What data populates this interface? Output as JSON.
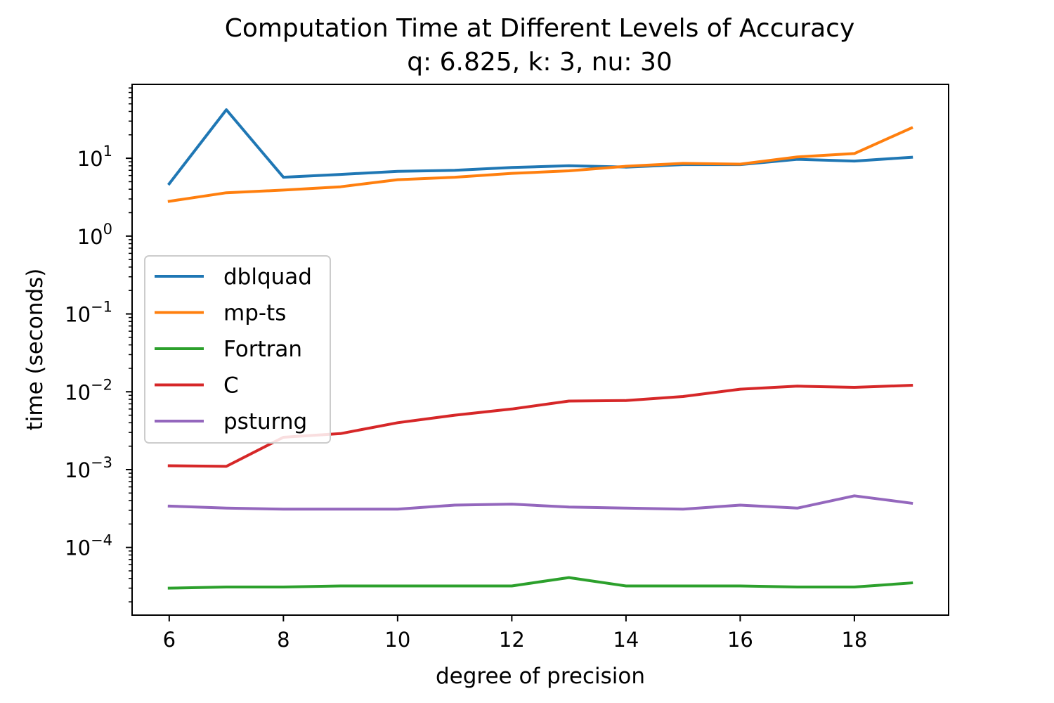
{
  "chart_data": {
    "type": "line",
    "title": "Computation Time at Different Levels of Accuracy",
    "subtitle": "q: 6.825, k: 3, nu: 30",
    "xlabel": "degree of precision",
    "ylabel": "time (seconds)",
    "yscale": "log",
    "xlim": [
      5.35,
      19.65
    ],
    "ylim": [
      1.35e-05,
      89
    ],
    "x_ticks": [
      6,
      8,
      10,
      12,
      14,
      16,
      18
    ],
    "y_ticks": [
      {
        "value": 0.0001,
        "base": "10",
        "exp": "−4"
      },
      {
        "value": 0.001,
        "base": "10",
        "exp": "−3"
      },
      {
        "value": 0.01,
        "base": "10",
        "exp": "−2"
      },
      {
        "value": 0.1,
        "base": "10",
        "exp": "−1"
      },
      {
        "value": 1,
        "base": "10",
        "exp": "0"
      },
      {
        "value": 10,
        "base": "10",
        "exp": "1"
      }
    ],
    "grid": false,
    "legend_position": "center-left",
    "x": [
      6,
      7,
      8,
      9,
      10,
      11,
      12,
      13,
      14,
      15,
      16,
      17,
      18,
      19
    ],
    "series": [
      {
        "name": "dblquad",
        "color": "#1f77b4",
        "values": [
          4.7,
          42,
          5.7,
          6.2,
          6.8,
          7.0,
          7.6,
          8.0,
          7.7,
          8.3,
          8.3,
          9.7,
          9.2,
          10.3
        ]
      },
      {
        "name": "mp-ts",
        "color": "#ff7f0e",
        "values": [
          2.8,
          3.6,
          3.9,
          4.3,
          5.3,
          5.7,
          6.4,
          6.9,
          7.9,
          8.6,
          8.4,
          10.4,
          11.5,
          24.5
        ]
      },
      {
        "name": "Fortran",
        "color": "#2ca02c",
        "values": [
          3e-05,
          3.1e-05,
          3.1e-05,
          3.2e-05,
          3.2e-05,
          3.2e-05,
          3.2e-05,
          4.1e-05,
          3.2e-05,
          3.2e-05,
          3.2e-05,
          3.1e-05,
          3.1e-05,
          3.5e-05
        ]
      },
      {
        "name": "C",
        "color": "#d62728",
        "values": [
          0.00112,
          0.0011,
          0.0026,
          0.0029,
          0.004,
          0.005,
          0.006,
          0.0076,
          0.0077,
          0.0087,
          0.0108,
          0.0118,
          0.0114,
          0.0121
        ]
      },
      {
        "name": "psturng",
        "color": "#9467bd",
        "values": [
          0.00034,
          0.00032,
          0.00031,
          0.00031,
          0.00031,
          0.00035,
          0.00036,
          0.00033,
          0.00032,
          0.00031,
          0.00035,
          0.00032,
          0.00046,
          0.00037
        ]
      }
    ]
  }
}
